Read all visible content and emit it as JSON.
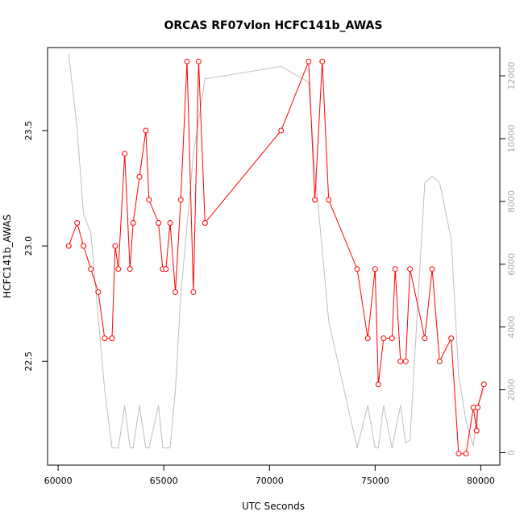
{
  "chart_data": {
    "type": "line",
    "title": "ORCAS RF07vlon HCFC141b_AWAS",
    "xlabel": "UTC Seconds",
    "ylabel": "HCFC141b_AWAS",
    "xlim": [
      59500,
      80900
    ],
    "ylim": [
      22.05,
      23.86
    ],
    "y2lim": [
      -400,
      12900
    ],
    "x_ticks": [
      60000,
      65000,
      70000,
      75000,
      80000
    ],
    "y_ticks": [
      22.5,
      23.0,
      23.5
    ],
    "y2_ticks": [
      0,
      2000,
      4000,
      6000,
      8000,
      10000,
      12000
    ],
    "grid": false,
    "legend": "none",
    "colors": {
      "primary": "#ff0000",
      "secondary": "#bebebe"
    },
    "series": [
      {
        "axis": "left",
        "style": "line+points",
        "color": "#ff0000",
        "x": [
          60500,
          60900,
          61200,
          61550,
          61900,
          62200,
          62550,
          62700,
          62850,
          63150,
          63400,
          63550,
          63850,
          64150,
          64300,
          64750,
          64950,
          65100,
          65300,
          65550,
          65800,
          66100,
          66400,
          66650,
          66950,
          70550,
          71850,
          72150,
          72500,
          72800,
          74150,
          74650,
          75000,
          75150,
          75400,
          75800,
          75950,
          76200,
          76450,
          76650,
          77350,
          77700,
          78050,
          78600,
          78950,
          79300,
          79650,
          79800,
          79850,
          80150
        ],
        "y": [
          23.0,
          23.1,
          23.0,
          22.9,
          22.8,
          22.6,
          22.6,
          23.0,
          22.9,
          23.4,
          22.9,
          23.1,
          23.3,
          23.5,
          23.2,
          23.1,
          22.9,
          22.9,
          23.1,
          22.8,
          23.2,
          23.8,
          22.8,
          23.8,
          23.1,
          23.5,
          23.8,
          23.2,
          23.8,
          23.2,
          22.9,
          22.6,
          22.9,
          22.4,
          22.6,
          22.6,
          22.9,
          22.5,
          22.5,
          22.9,
          22.6,
          22.9,
          22.5,
          22.6,
          22.1,
          22.1,
          22.3,
          22.2,
          22.3,
          22.4
        ]
      },
      {
        "axis": "right",
        "style": "line",
        "color": "#bebebe",
        "x": [
          60500,
          60900,
          61200,
          61550,
          62200,
          62550,
          62850,
          63150,
          63400,
          63550,
          63850,
          64150,
          64300,
          64750,
          64950,
          65300,
          65550,
          65800,
          66400,
          66950,
          70550,
          71850,
          72150,
          72800,
          74150,
          74650,
          75000,
          75150,
          75400,
          75800,
          76200,
          76450,
          76650,
          77350,
          77700,
          78050,
          78600,
          78950,
          79300,
          79650,
          79850,
          80150
        ],
        "y": [
          12700,
          10300,
          7600,
          7000,
          2000,
          150,
          150,
          1500,
          150,
          150,
          1500,
          150,
          150,
          1500,
          150,
          150,
          2000,
          5000,
          9500,
          11900,
          12300,
          11800,
          9000,
          4200,
          150,
          1500,
          150,
          150,
          1500,
          150,
          1500,
          300,
          400,
          8600,
          8800,
          8600,
          6800,
          2500,
          1000,
          200,
          1500,
          2000
        ]
      }
    ]
  }
}
